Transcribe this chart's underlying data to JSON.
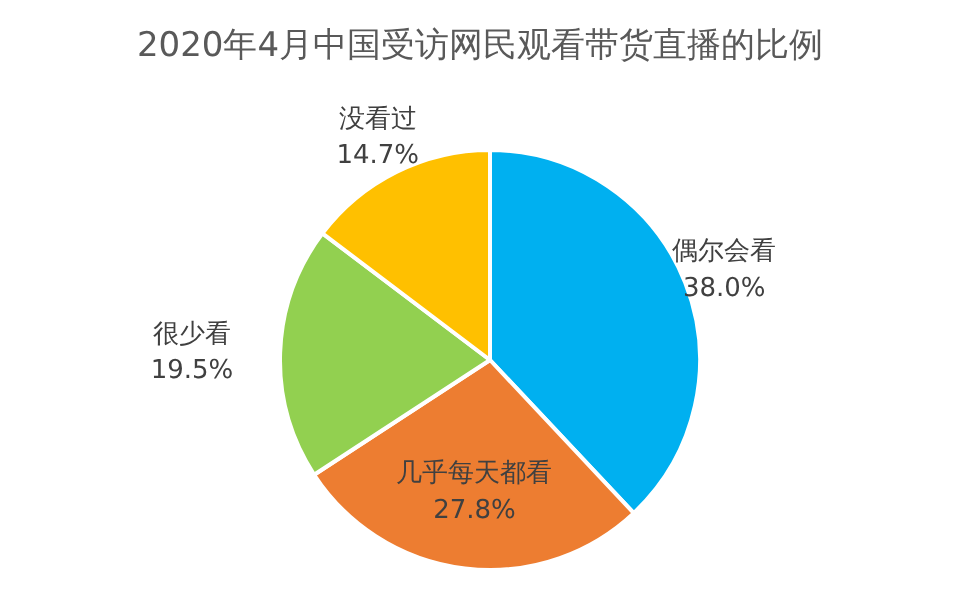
{
  "chart_data": {
    "type": "pie",
    "title": "2020年4月中国受访网民观看带货直播的比例",
    "categories": [
      "偶尔会看",
      "几乎每天都看",
      "很少看",
      "没看过"
    ],
    "values": [
      38.0,
      27.8,
      19.5,
      14.7
    ],
    "colors": [
      "#00b0f0",
      "#ed7d31",
      "#92d050",
      "#ffc000"
    ],
    "value_labels": [
      "38.0%",
      "27.8%",
      "19.5%",
      "14.7%"
    ]
  }
}
